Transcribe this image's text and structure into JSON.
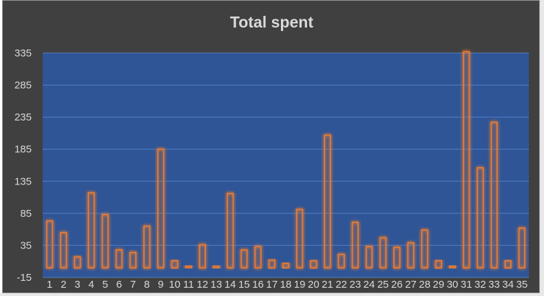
{
  "chart_data": {
    "type": "bar",
    "title": "Total spent",
    "xlabel": "",
    "ylabel": "",
    "categories": [
      "1",
      "2",
      "3",
      "4",
      "5",
      "6",
      "7",
      "8",
      "9",
      "10",
      "11",
      "12",
      "13",
      "14",
      "15",
      "16",
      "17",
      "18",
      "19",
      "20",
      "21",
      "22",
      "23",
      "24",
      "25",
      "26",
      "27",
      "28",
      "29",
      "30",
      "31",
      "32",
      "33",
      "34",
      "35"
    ],
    "values": [
      73,
      55,
      17,
      117,
      83,
      28,
      24,
      65,
      185,
      11,
      3,
      36,
      3,
      116,
      28,
      33,
      12,
      7,
      91,
      11,
      207,
      21,
      71,
      33,
      47,
      32,
      39,
      59,
      11,
      3,
      337,
      156,
      227,
      11,
      62
    ],
    "ylim": [
      -15,
      335
    ],
    "yticks": [
      -15,
      35,
      85,
      135,
      185,
      235,
      285,
      335
    ],
    "grid": true,
    "legend": "none",
    "colors": {
      "background": "#404040",
      "plot_area": "#2f5597",
      "gridline": "#5b8bd6",
      "bar_stroke": "#ed7d31",
      "bar_glow": "#ff9a4d",
      "text": "#d9d9d9"
    }
  }
}
